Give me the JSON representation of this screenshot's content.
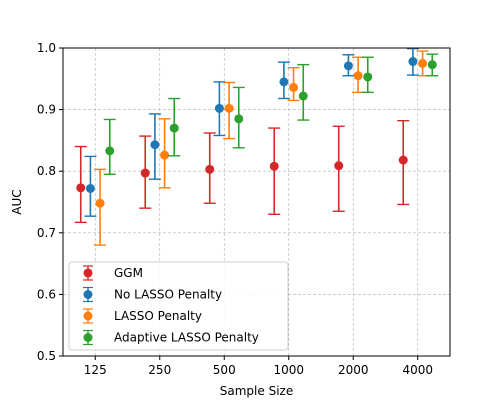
{
  "chart_data": {
    "type": "scatter",
    "xlabel": "Sample Size",
    "ylabel": "AUC",
    "categories": [
      "125",
      "250",
      "500",
      "1000",
      "2000",
      "4000"
    ],
    "ylim": [
      0.5,
      1.0
    ],
    "yticks": [
      "0.5",
      "0.6",
      "0.7",
      "0.8",
      "0.9",
      "1.0"
    ],
    "grid": true,
    "legend_position": "lower-left",
    "series": [
      {
        "name": "GGM",
        "color": "#d62728",
        "values": [
          0.773,
          0.797,
          0.803,
          0.808,
          0.809,
          0.818
        ],
        "lower": [
          0.717,
          0.74,
          0.748,
          0.73,
          0.735,
          0.746
        ],
        "upper": [
          0.84,
          0.857,
          0.862,
          0.87,
          0.873,
          0.882
        ]
      },
      {
        "name": "No LASSO Penalty",
        "color": "#1f77b4",
        "values": [
          0.772,
          0.843,
          0.902,
          0.945,
          0.971,
          0.978
        ],
        "lower": [
          0.727,
          0.787,
          0.858,
          0.918,
          0.955,
          0.956
        ],
        "upper": [
          0.824,
          0.893,
          0.945,
          0.977,
          0.989,
          0.999
        ]
      },
      {
        "name": "LASSO Penalty",
        "color": "#ff7f0e",
        "values": [
          0.748,
          0.826,
          0.902,
          0.936,
          0.955,
          0.975
        ],
        "lower": [
          0.68,
          0.773,
          0.853,
          0.915,
          0.928,
          0.955
        ],
        "upper": [
          0.803,
          0.885,
          0.944,
          0.968,
          0.985,
          0.995
        ]
      },
      {
        "name": "Adaptive LASSO Penalty",
        "color": "#2ca02c",
        "values": [
          0.833,
          0.87,
          0.885,
          0.922,
          0.953,
          0.973
        ],
        "lower": [
          0.795,
          0.825,
          0.838,
          0.883,
          0.928,
          0.955
        ],
        "upper": [
          0.884,
          0.918,
          0.936,
          0.973,
          0.985,
          0.99
        ]
      }
    ]
  }
}
